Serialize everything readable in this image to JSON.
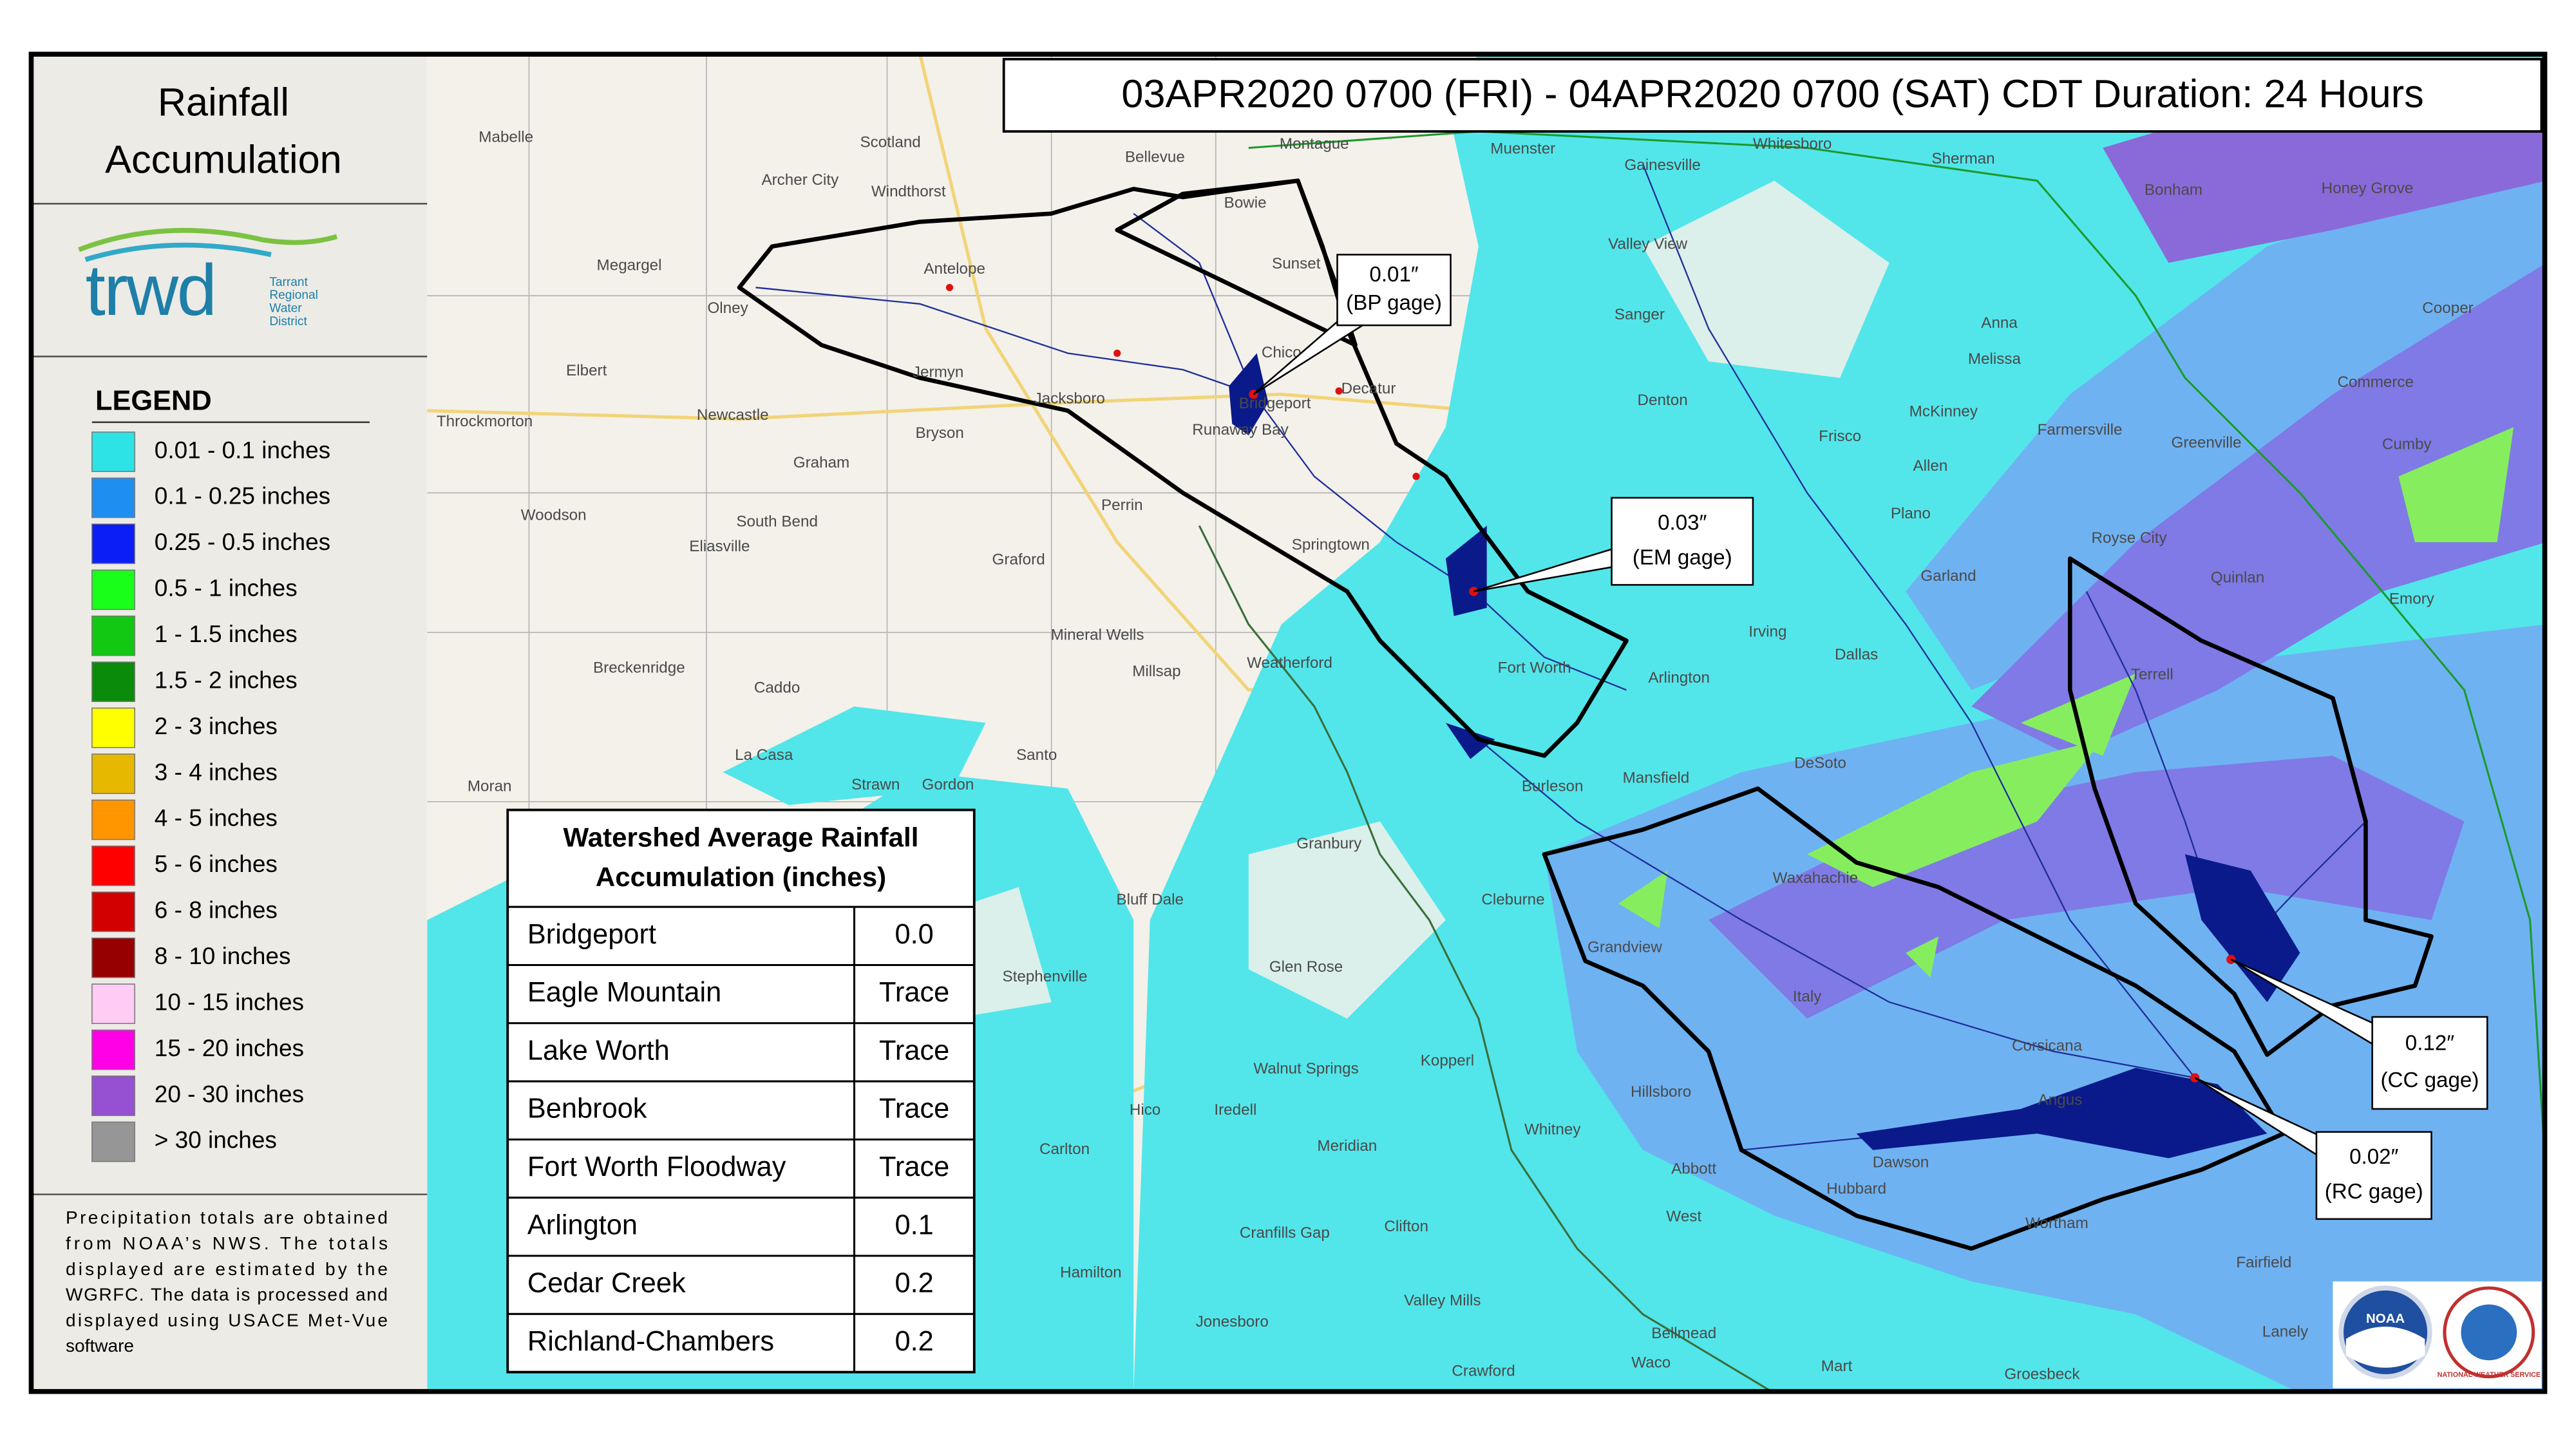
{
  "header": "03APR2020 0700 (FRI) - 04APR2020 0700 (SAT) CDT Duration: 24 Hours",
  "sidebar": {
    "title_lines": [
      "Rainfall",
      "Accumulation"
    ],
    "logo": {
      "name": "trwd",
      "tagline": [
        "Tarrant",
        "Regional",
        "Water",
        "District"
      ]
    },
    "legend": {
      "title": "LEGEND",
      "items": [
        {
          "label": "0.01 - 0.1 inches",
          "color": "#2ee3e6"
        },
        {
          "label": "0.1 - 0.25 inches",
          "color": "#1e8ff0"
        },
        {
          "label": "0.25 - 0.5 inches",
          "color": "#0a1ef5"
        },
        {
          "label": "0.5 - 1 inches",
          "color": "#19ff19"
        },
        {
          "label": "1 - 1.5 inches",
          "color": "#12c812"
        },
        {
          "label": "1.5 - 2 inches",
          "color": "#0a8c0a"
        },
        {
          "label": "2 - 3 inches",
          "color": "#ffff00"
        },
        {
          "label": "3 - 4 inches",
          "color": "#e6b800"
        },
        {
          "label": "4 - 5 inches",
          "color": "#ff9600"
        },
        {
          "label": "5 - 6 inches",
          "color": "#ff0000"
        },
        {
          "label": "6 - 8 inches",
          "color": "#d20000"
        },
        {
          "label": "8 - 10 inches",
          "color": "#960000"
        },
        {
          "label": "10 - 15 inches",
          "color": "#ffccf5"
        },
        {
          "label": "15 - 20 inches",
          "color": "#ff00e6"
        },
        {
          "label": "20 - 30 inches",
          "color": "#9650d2"
        },
        {
          "label": "> 30 inches",
          "color": "#969696"
        }
      ]
    },
    "note_lines": [
      "Precipitation totals are obtained",
      "from NOAA’s NWS.  The totals",
      "displayed are estimated by the",
      "WGRFC.  The data is processed and",
      "displayed using USACE Met-Vue",
      "software"
    ]
  },
  "table": {
    "title_lines": [
      "Watershed Average Rainfall",
      "Accumulation (inches)"
    ],
    "rows": [
      [
        "Bridgeport",
        "0.0"
      ],
      [
        "Eagle Mountain",
        "Trace"
      ],
      [
        "Lake Worth",
        "Trace"
      ],
      [
        "Benbrook",
        "Trace"
      ],
      [
        "Fort Worth Floodway",
        "Trace"
      ],
      [
        "Arlington",
        "0.1"
      ],
      [
        "Cedar Creek",
        "0.2"
      ],
      [
        "Richland-Chambers",
        "0.2"
      ]
    ]
  },
  "gages": [
    {
      "value": "0.01″",
      "label": "(BP gage)"
    },
    {
      "value": "0.03″",
      "label": "(EM gage)"
    },
    {
      "value": "0.12″",
      "label": "(CC gage)"
    },
    {
      "value": "0.02″",
      "label": "(RC gage)"
    }
  ],
  "map_labels": [
    "Mabelle",
    "Scotland",
    "Bellevue",
    "Archer City",
    "Windthorst",
    "Megargel",
    "Olney",
    "Antelope",
    "Jermyn",
    "Jacksboro",
    "Bryson",
    "Newcastle",
    "Graham",
    "Elbert",
    "Throckmorton",
    "Woodson",
    "South Bend",
    "Eliasville",
    "Graford",
    "Perrin",
    "Mineral Wells",
    "Millsap",
    "Weatherford",
    "Breckenridge",
    "Caddo",
    "La Casa",
    "Santo",
    "Moran",
    "Strawn",
    "Gordon",
    "Granbury",
    "Bluff Dale",
    "Stephenville",
    "Glen Rose",
    "Walnut Springs",
    "Iredell",
    "Meridian",
    "Hico",
    "Carlton",
    "Hamilton",
    "Cranfills Gap",
    "Clifton",
    "Valley Mills",
    "Crawford",
    "Jonesboro",
    "Kopperl",
    "Whitney",
    "Hillsboro",
    "Abbott",
    "West",
    "Waco",
    "Bellmead",
    "Cleburne",
    "Grandview",
    "Italy",
    "Waxahachie",
    "DeSoto",
    "Mansfield",
    "Burleson",
    "Fort Worth",
    "Arlington",
    "Irving",
    "Dallas",
    "Garland",
    "Plano",
    "Denton",
    "Decatur",
    "Bridgeport",
    "Runaway Bay",
    "Chico",
    "Sunset",
    "Bowie",
    "Montague",
    "Muenster",
    "Gainesville",
    "Whitesboro",
    "Sherman",
    "Bonham",
    "Honey Grove",
    "Valley View",
    "Sanger",
    "Anna",
    "Melissa",
    "McKinney",
    "Frisco",
    "Allen",
    "Farmersville",
    "Greenville",
    "Commerce",
    "Cooper",
    "Cumby",
    "Royse City",
    "Quinlan",
    "Emory",
    "Terrell",
    "Corsicana",
    "Angus",
    "Dawson",
    "Hubbard",
    "Mart",
    "Groesbeck",
    "Fairfield",
    "Wortham",
    "Lanely",
    "Springtown"
  ],
  "logos": {
    "noaa": "NOAA",
    "nws": "NATIONAL WEATHER SERVICE"
  }
}
